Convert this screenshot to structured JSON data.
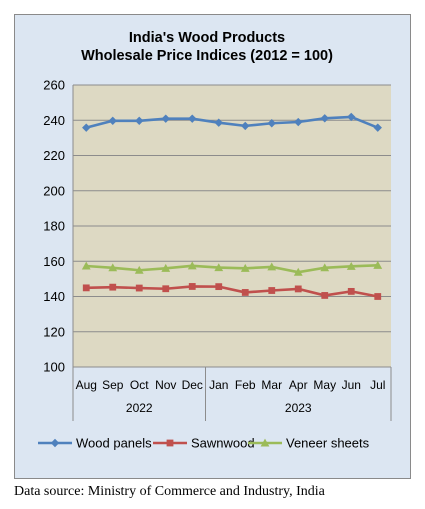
{
  "chart_data": {
    "type": "line",
    "title_lines": [
      "India's Wood Products",
      "Wholesale Price Indices (2012 = 100)"
    ],
    "categories": [
      "Aug",
      "Sep",
      "Oct",
      "Nov",
      "Dec",
      "Jan",
      "Feb",
      "Mar",
      "Apr",
      "May",
      "Jun",
      "Jul"
    ],
    "year_groups": [
      {
        "label": "2022",
        "span": 5
      },
      {
        "label": "2023",
        "span": 7
      }
    ],
    "yticks": [
      "260",
      "240",
      "220",
      "200",
      "180",
      "160",
      "140",
      "120",
      "100"
    ],
    "ylim": [
      100,
      260
    ],
    "grid": true,
    "legend_position": "bottom",
    "plot_background": "#ddd9c3",
    "series": [
      {
        "name": "Wood panels",
        "color": "#4f81bd",
        "marker": "diamond",
        "values": [
          235.8,
          239.7,
          239.7,
          240.9,
          240.9,
          238.6,
          236.8,
          238.3,
          239.0,
          241.1,
          241.9,
          235.8
        ]
      },
      {
        "name": "Sawnwood",
        "color": "#c0504d",
        "marker": "square",
        "values": [
          144.9,
          145.3,
          144.8,
          144.4,
          145.7,
          145.6,
          142.3,
          143.4,
          144.3,
          140.6,
          142.9,
          140.0
        ]
      },
      {
        "name": "Veneer sheets",
        "color": "#9bbb59",
        "marker": "triangle",
        "values": [
          157.3,
          156.3,
          154.9,
          156.0,
          157.4,
          156.4,
          156.0,
          156.8,
          153.8,
          156.3,
          157.1,
          157.7
        ]
      }
    ]
  },
  "source_text": "Data source: Ministry of Commerce and Industry, India"
}
